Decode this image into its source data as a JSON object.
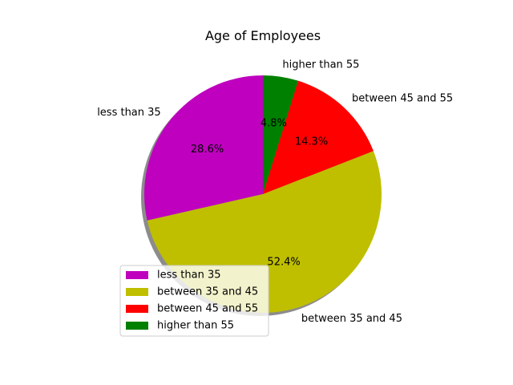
{
  "chart_data": {
    "type": "pie",
    "title": "Age of Employees",
    "categories": [
      "less than 35",
      "between 35 and 45",
      "between 45 and 55",
      "higher than 55"
    ],
    "values": [
      28.6,
      52.4,
      14.3,
      4.8
    ],
    "value_labels": [
      "28.6%",
      "52.4%",
      "14.3%",
      "4.8%"
    ],
    "colors": [
      "#bf00bf",
      "#bfbf00",
      "#ff0000",
      "#008000"
    ],
    "legend": {
      "entries": [
        "less than 35",
        "between 35 and 45",
        "between 45 and 55",
        "higher than 55"
      ],
      "placement": "lower-left"
    },
    "shadow": true,
    "start_angle_deg": 90,
    "direction": "counterclockwise"
  }
}
